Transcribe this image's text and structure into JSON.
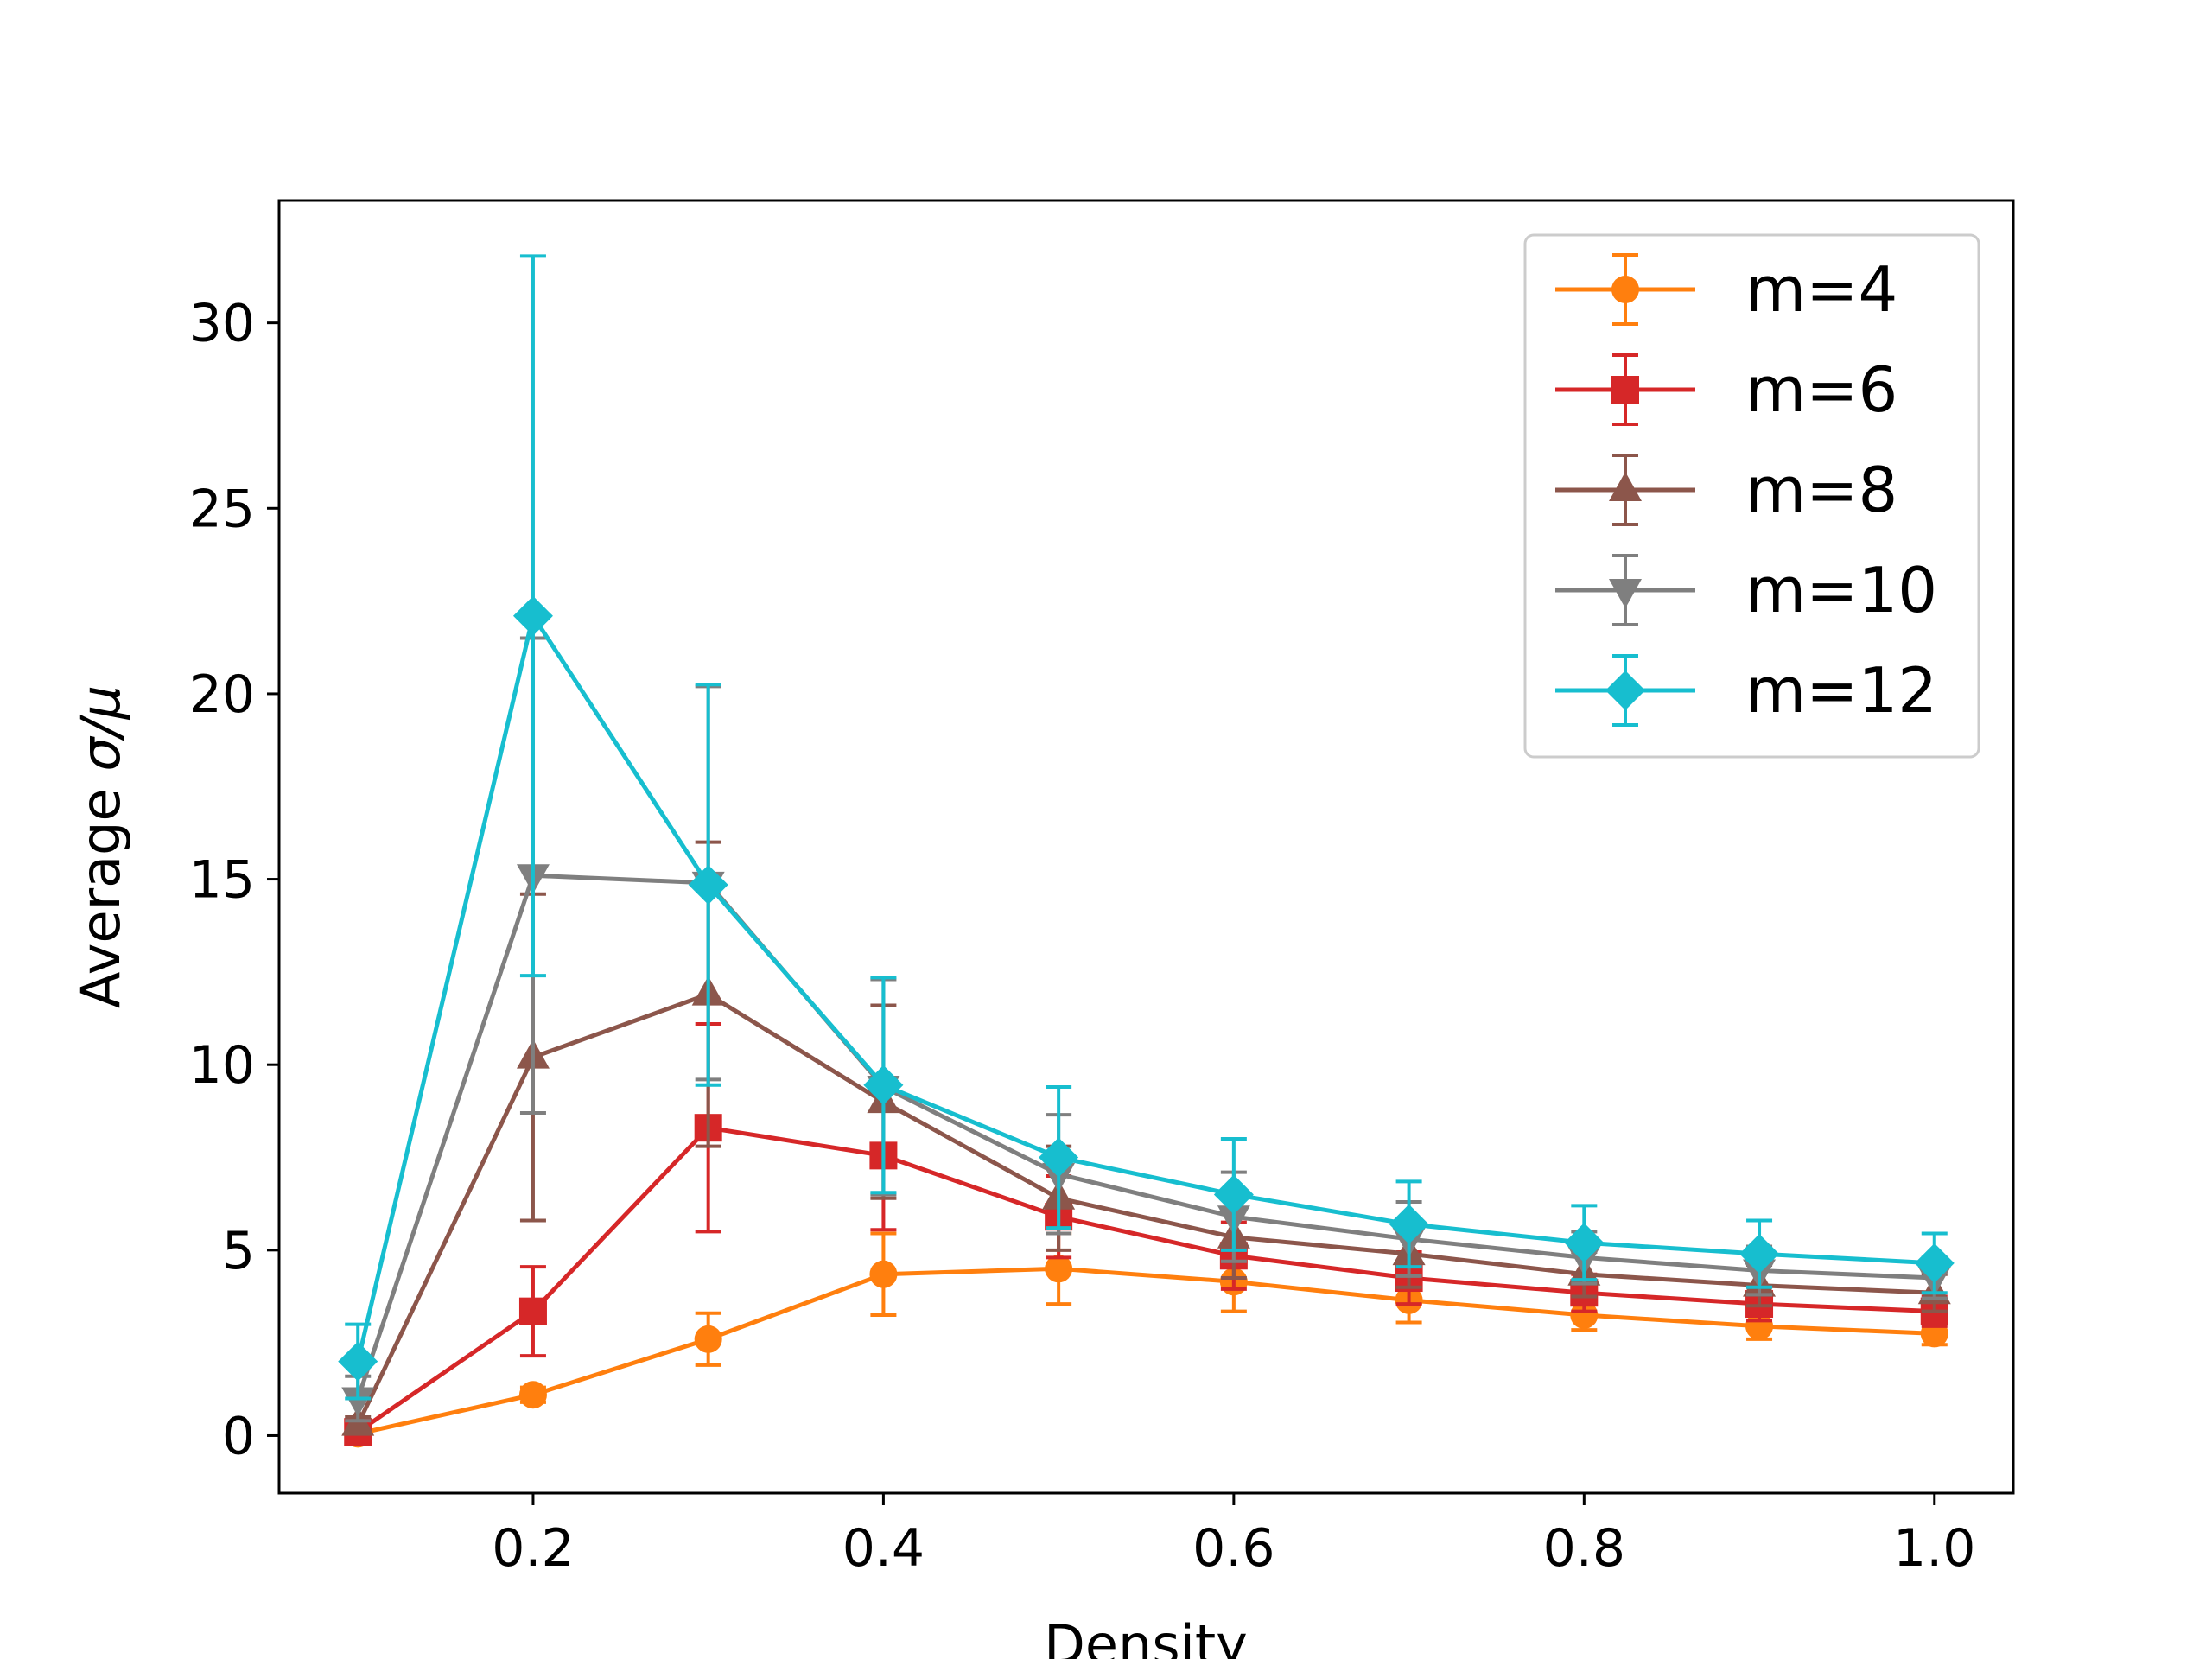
{
  "chart_data": {
    "type": "line",
    "title": "",
    "xlabel": "Density",
    "ylabel_prefix": "Average ",
    "ylabel_symbol": "σ/μ",
    "xlim": [
      0.055,
      1.045
    ],
    "ylim": [
      -1.55,
      33.3
    ],
    "xticks": [
      0.2,
      0.4,
      0.6,
      0.8,
      1.0
    ],
    "xtick_labels": [
      "0.2",
      "0.4",
      "0.6",
      "0.8",
      "1.0"
    ],
    "yticks": [
      0,
      5,
      10,
      15,
      20,
      25,
      30
    ],
    "ytick_labels": [
      "0",
      "5",
      "10",
      "15",
      "20",
      "25",
      "30"
    ],
    "grid": false,
    "legend_position": "top-right",
    "x": [
      0.1,
      0.2,
      0.3,
      0.4,
      0.5,
      0.6,
      0.7,
      0.8,
      0.9,
      1.0
    ],
    "series": [
      {
        "name": "m=4",
        "color": "#ff7f0e",
        "marker": "circle",
        "values": [
          0.05,
          1.1,
          2.6,
          4.35,
          4.5,
          4.15,
          3.65,
          3.25,
          2.95,
          2.75
        ],
        "errors": [
          0.05,
          0.2,
          0.7,
          1.1,
          0.95,
          0.8,
          0.6,
          0.4,
          0.35,
          0.3
        ]
      },
      {
        "name": "m=6",
        "color": "#d62728",
        "marker": "square",
        "values": [
          0.1,
          3.35,
          8.3,
          7.55,
          5.9,
          4.85,
          4.25,
          3.85,
          3.55,
          3.35
        ],
        "errors": [
          0.05,
          1.2,
          2.8,
          2.0,
          1.1,
          0.9,
          0.7,
          0.5,
          0.45,
          0.4
        ]
      },
      {
        "name": "m=8",
        "color": "#8c564b",
        "marker": "triangle-up",
        "values": [
          0.3,
          10.2,
          11.9,
          9.0,
          6.4,
          5.35,
          4.9,
          4.35,
          4.05,
          3.85
        ],
        "errors": [
          0.2,
          4.4,
          4.1,
          2.6,
          1.4,
          1.1,
          0.9,
          0.6,
          0.55,
          0.5
        ]
      },
      {
        "name": "m=10",
        "color": "#7f7f7f",
        "marker": "triangle-down",
        "values": [
          1.0,
          15.1,
          14.9,
          9.4,
          7.05,
          5.9,
          5.3,
          4.8,
          4.45,
          4.25
        ],
        "errors": [
          0.6,
          6.4,
          5.3,
          2.9,
          1.6,
          1.2,
          1.0,
          0.7,
          0.65,
          0.55
        ]
      },
      {
        "name": "m=12",
        "color": "#17becf",
        "marker": "diamond",
        "values": [
          2.0,
          22.1,
          14.85,
          9.45,
          7.5,
          6.5,
          5.7,
          5.2,
          4.9,
          4.65
        ],
        "errors": [
          1.0,
          9.7,
          5.4,
          2.9,
          1.9,
          1.5,
          1.15,
          1.0,
          0.9,
          0.8
        ]
      }
    ]
  }
}
